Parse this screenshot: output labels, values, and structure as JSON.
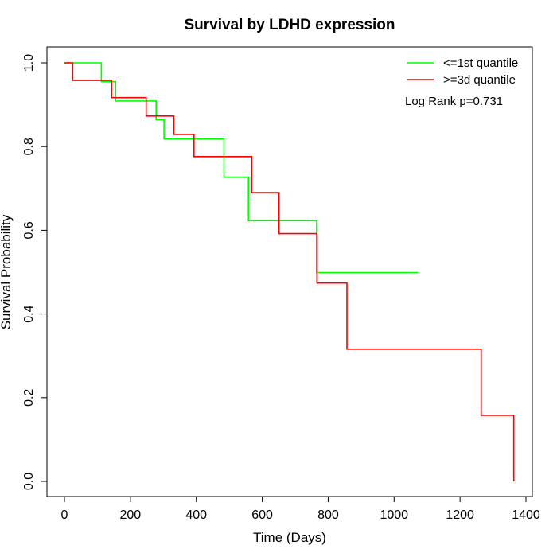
{
  "chart_data": {
    "type": "line",
    "subtype": "kaplan-meier step",
    "title": "Survival by LDHD expression",
    "xlabel": "Time (Days)",
    "ylabel": "Survival Probability",
    "xlim": [
      0,
      1400
    ],
    "ylim": [
      0,
      1.0
    ],
    "xticks": [
      0,
      200,
      400,
      600,
      800,
      1000,
      1200,
      1400
    ],
    "yticks": [
      0.0,
      0.2,
      0.4,
      0.6,
      0.8,
      1.0
    ],
    "xtick_labels": [
      "0",
      "200",
      "400",
      "600",
      "800",
      "1000",
      "1200",
      "1400"
    ],
    "ytick_labels": [
      "0.0",
      "0.2",
      "0.4",
      "0.6",
      "0.8",
      "1.0"
    ],
    "grid": false,
    "legend_position": "top-right",
    "annotation": "Log Rank p=0.731",
    "series": [
      {
        "name": "<=1st quantile",
        "color": "#00ff00",
        "x": [
          0,
          112,
          112,
          155,
          155,
          278,
          278,
          302,
          302,
          484,
          484,
          558,
          558,
          765,
          765,
          1073
        ],
        "y": [
          1.0,
          1.0,
          0.955,
          0.955,
          0.909,
          0.909,
          0.864,
          0.864,
          0.818,
          0.818,
          0.727,
          0.727,
          0.623,
          0.623,
          0.499,
          0.499
        ]
      },
      {
        "name": ">=3d quantile",
        "color": "#ff0000",
        "x": [
          0,
          25,
          25,
          143,
          143,
          248,
          248,
          332,
          332,
          393,
          393,
          568,
          568,
          651,
          651,
          766,
          766,
          857,
          857,
          1264,
          1264,
          1363,
          1363
        ],
        "y": [
          1.0,
          1.0,
          0.958,
          0.958,
          0.917,
          0.917,
          0.873,
          0.873,
          0.829,
          0.829,
          0.776,
          0.776,
          0.69,
          0.69,
          0.592,
          0.592,
          0.474,
          0.474,
          0.316,
          0.316,
          0.158,
          0.158,
          0.0
        ]
      }
    ]
  }
}
